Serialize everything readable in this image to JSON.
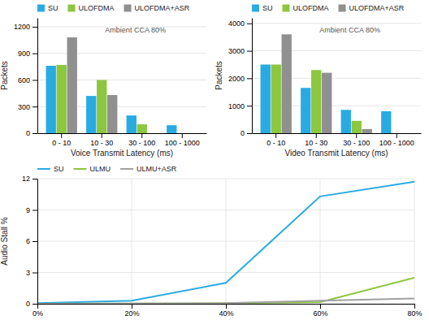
{
  "chart_data": [
    {
      "type": "bar",
      "x_label": "Voice Transmit Latency (ms)",
      "y_label": "Packets",
      "annotation": "Ambient CCA 80%",
      "categories": [
        "0 - 10",
        "10 - 30",
        "30 - 100",
        "100 - 1000"
      ],
      "series": [
        {
          "name": "SU",
          "color": "#29ABE2",
          "values": [
            760,
            420,
            200,
            90
          ]
        },
        {
          "name": "ULOFDMA",
          "color": "#8DC63F",
          "values": [
            770,
            600,
            100,
            0
          ]
        },
        {
          "name": "ULOFDMA+ASR",
          "color": "#909090",
          "values": [
            1080,
            430,
            0,
            0
          ]
        }
      ],
      "ylim": [
        0,
        1300
      ],
      "yticks": [
        0,
        300,
        600,
        900,
        1200
      ],
      "grid": true,
      "legend": "top"
    },
    {
      "type": "bar",
      "x_label": "Video Transmit Latency (ms)",
      "y_label": "Packets",
      "annotation": "Ambient CCA 80%",
      "categories": [
        "0 - 10",
        "10 - 30",
        "30 - 100",
        "100 - 1000"
      ],
      "series": [
        {
          "name": "SU",
          "color": "#29ABE2",
          "values": [
            2500,
            1650,
            850,
            800
          ]
        },
        {
          "name": "ULOFDMA",
          "color": "#8DC63F",
          "values": [
            2500,
            2300,
            450,
            0
          ]
        },
        {
          "name": "ULOFDMA+ASR",
          "color": "#909090",
          "values": [
            3600,
            2200,
            150,
            0
          ]
        }
      ],
      "ylim": [
        0,
        4200
      ],
      "yticks": [
        0,
        1000,
        2000,
        3000,
        4000
      ],
      "grid": true,
      "legend": "top"
    },
    {
      "type": "line",
      "y_label": "Audio Stall %",
      "x": [
        0,
        20,
        40,
        60,
        80
      ],
      "series": [
        {
          "name": "SU",
          "color": "#29ABE2",
          "values": [
            0.05,
            0.3,
            2.0,
            10.3,
            11.7
          ]
        },
        {
          "name": "ULMU",
          "color": "#8DC63F",
          "values": [
            0.0,
            0.02,
            0.05,
            0.15,
            2.5
          ]
        },
        {
          "name": "ULMU+ASR",
          "color": "#A0A0A0",
          "values": [
            0.0,
            0.02,
            0.05,
            0.3,
            0.5
          ]
        }
      ],
      "xlim": [
        0,
        80
      ],
      "xticks": [
        {
          "value": 0,
          "label": "0%"
        },
        {
          "value": 20,
          "label": "20%"
        },
        {
          "value": 40,
          "label": "40%"
        },
        {
          "value": 60,
          "label": "60%"
        },
        {
          "value": 80,
          "label": "80%"
        }
      ],
      "ylim": [
        0,
        12
      ],
      "yticks": [
        0,
        3,
        6,
        9,
        12
      ],
      "grid": true,
      "legend": "top"
    }
  ]
}
